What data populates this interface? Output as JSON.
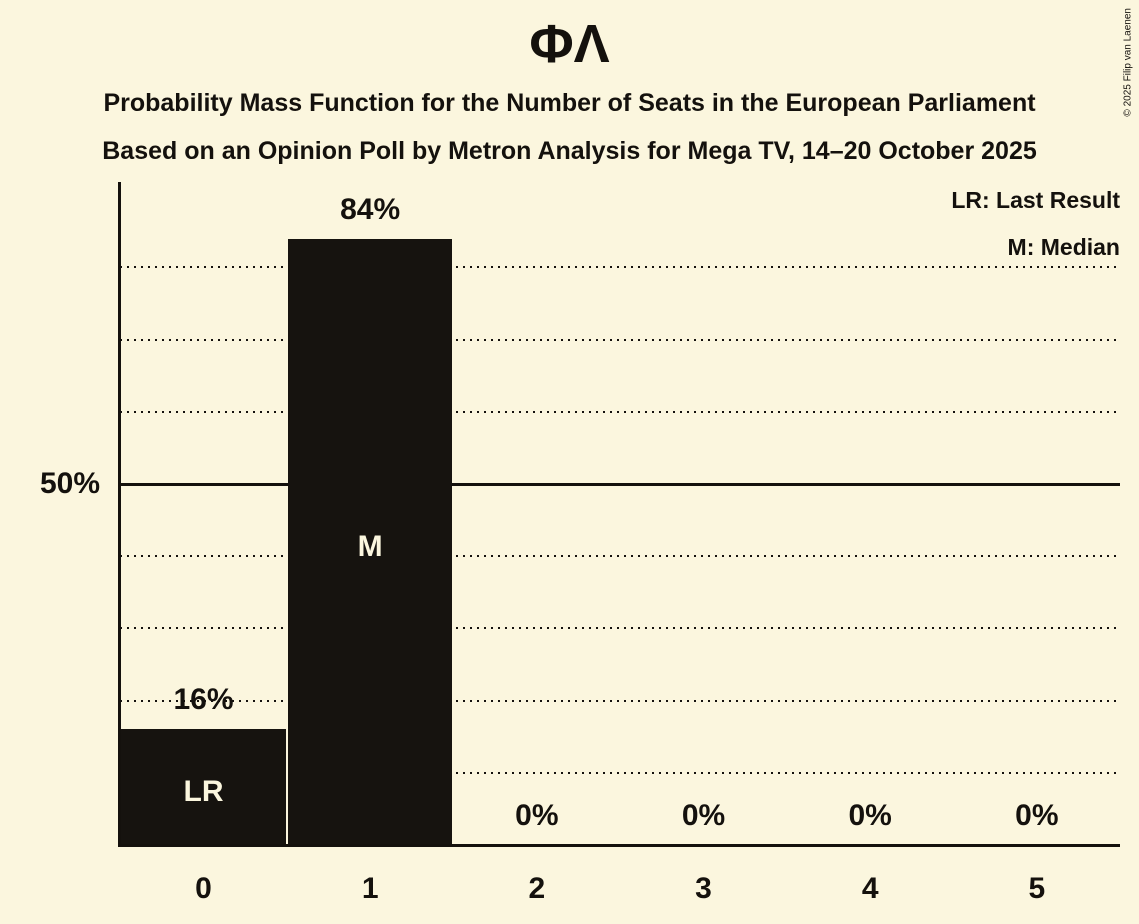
{
  "title": "ΦΛ",
  "subtitle1": "Probability Mass Function for the Number of Seats in the European Parliament",
  "subtitle2": "Based on an Opinion Poll by Metron Analysis for Mega TV, 14–20 October 2025",
  "legend": {
    "last_result": "LR: Last Result",
    "median": "M: Median"
  },
  "copyright": "© 2025 Filip van Laenen",
  "colors": {
    "background": "#fbf6de",
    "ink": "#14110d",
    "bar": "#16130f",
    "bar_label_text": "#fbf6de"
  },
  "y_axis": {
    "tick_label": "50%",
    "tick_value": 50,
    "solid_line_percent": 50,
    "dotted_gridlines_percent": [
      10,
      20,
      30,
      40,
      60,
      70,
      80
    ]
  },
  "chart_data": {
    "type": "bar",
    "title": "ΦΛ",
    "subtitle": "Probability Mass Function for the Number of Seats in the European Parliament",
    "source_line": "Based on an Opinion Poll by Metron Analysis for Mega TV, 14–20 October 2025",
    "categories": [
      "0",
      "1",
      "2",
      "3",
      "4",
      "5"
    ],
    "values": [
      16,
      84,
      0,
      0,
      0,
      0
    ],
    "value_labels": [
      "16%",
      "84%",
      "0%",
      "0%",
      "0%",
      "0%"
    ],
    "bar_annotations": [
      "LR",
      "M",
      "",
      "",
      "",
      ""
    ],
    "annotation_meanings": {
      "LR": "Last Result",
      "M": "Median"
    },
    "xlabel": "",
    "ylabel": "",
    "ylim": [
      0,
      92
    ],
    "grid": "dotted horizontal lines every 10%, solid line at 50%",
    "legend_position": "top-right"
  }
}
